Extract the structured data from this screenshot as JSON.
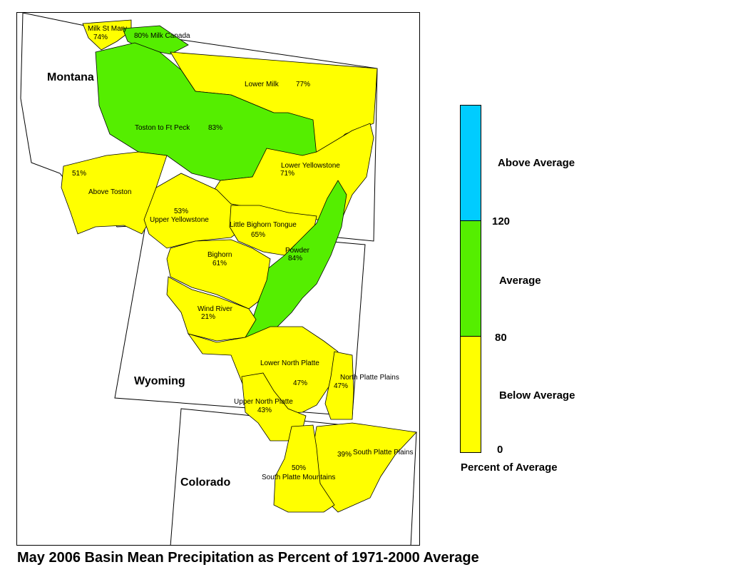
{
  "title": "May 2006 Basin Mean Precipitation as Percent of 1971-2000 Average",
  "colors": {
    "below": "#FFFF00",
    "average": "#55EE00",
    "above": "#00CCFF",
    "outline": "#000000"
  },
  "states": [
    {
      "name": "Montana"
    },
    {
      "name": "Wyoming"
    },
    {
      "name": "Colorado"
    }
  ],
  "basins": [
    {
      "name": "Milk St Mary",
      "pct": "74%",
      "category": "below"
    },
    {
      "name": "Milk Canada",
      "pct": "80%",
      "category": "average"
    },
    {
      "name": "Lower Milk",
      "pct": "77%",
      "category": "below"
    },
    {
      "name": "Toston to Ft Peck",
      "pct": "83%",
      "category": "average"
    },
    {
      "name": "Above Toston",
      "pct": "51%",
      "category": "below"
    },
    {
      "name": "Lower Yellowstone",
      "pct": "71%",
      "category": "below"
    },
    {
      "name": "Upper Yellowstone",
      "pct": "53%",
      "category": "below"
    },
    {
      "name": "Little Bighorn Tongue",
      "pct": "65%",
      "category": "below"
    },
    {
      "name": "Powder",
      "pct": "84%",
      "category": "average"
    },
    {
      "name": "Bighorn",
      "pct": "61%",
      "category": "below"
    },
    {
      "name": "Wind River",
      "pct": "21%",
      "category": "below"
    },
    {
      "name": "Lower North Platte",
      "pct": "47%",
      "category": "below"
    },
    {
      "name": "North Platte Plains",
      "pct": "47%",
      "category": "below"
    },
    {
      "name": "Upper North Platte",
      "pct": "43%",
      "category": "below"
    },
    {
      "name": "South Platte Plains",
      "pct": "39%",
      "category": "below"
    },
    {
      "name": "South Platte Mountains",
      "pct": "50%",
      "category": "below"
    }
  ],
  "legend": {
    "categories": [
      {
        "label": "Above Average",
        "color": "#00CCFF",
        "range": [
          120,
          null
        ]
      },
      {
        "label": "Average",
        "color": "#55EE00",
        "range": [
          80,
          120
        ]
      },
      {
        "label": "Below Average",
        "color": "#FFFF00",
        "range": [
          0,
          80
        ]
      }
    ],
    "breaks": [
      "120",
      "80",
      "0"
    ],
    "caption": "Percent of Average"
  }
}
